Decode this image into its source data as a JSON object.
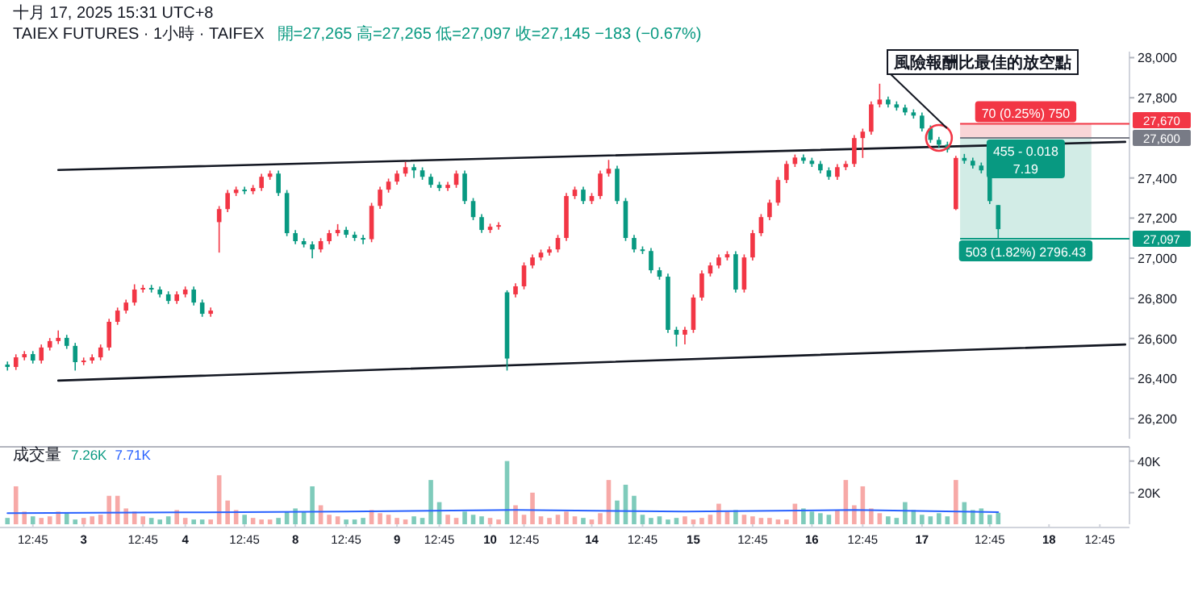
{
  "chart_data": [
    {
      "type": "candlestick",
      "title": "TAIEX FUTURES · 1小時 · TAIFEX",
      "subtitle": "開=27,265 高=27,265 低=27,097 收=27,145 −183 (−0.67%)",
      "annotations": [
        "十月 17, 2025 15:31 UTC+8",
        "風險報酬比最佳的放空點",
        {
          "text": "70 (0.25%) 750",
          "y": 27670
        },
        {
          "text": "455 - 0.018\n7.19",
          "y": 27600
        },
        {
          "text": "503 (1.82%) 2796.43",
          "y": 27097
        }
      ],
      "categories": [
        null,
        null,
        null,
        null,
        null,
        null,
        null,
        null,
        null,
        null,
        null,
        null,
        null,
        null,
        null,
        null,
        null,
        null,
        null,
        null,
        null,
        null,
        null,
        null,
        null,
        null,
        null,
        null,
        null,
        null,
        null,
        null,
        null,
        null,
        null,
        null,
        null,
        null,
        null,
        null,
        null,
        null,
        null,
        null,
        null,
        null,
        null,
        null,
        null,
        null,
        null,
        null,
        null,
        null,
        null,
        null,
        null,
        null,
        null,
        null,
        null,
        null,
        null,
        null,
        null,
        null,
        null,
        null,
        null,
        null,
        null,
        null,
        null,
        null,
        null,
        null,
        null,
        null,
        null,
        null,
        null,
        null,
        null,
        null,
        null,
        null,
        null,
        null,
        null,
        null,
        null,
        null,
        null,
        null,
        null,
        null,
        null,
        null,
        null,
        null,
        null,
        null,
        null,
        null,
        null,
        null,
        null,
        null,
        null,
        null,
        null,
        null,
        null,
        null,
        null,
        null,
        null,
        null,
        null,
        null,
        null,
        null,
        null,
        null,
        null,
        null,
        null,
        null,
        null,
        null,
        null,
        null,
        null
      ],
      "ohlc": [
        [
          26470,
          26485,
          26440,
          26458
        ],
        [
          26458,
          26521,
          26443,
          26506
        ],
        [
          26506,
          26537,
          26491,
          26522
        ],
        [
          26522,
          26537,
          26475,
          26490
        ],
        [
          26490,
          26570,
          26475,
          26555
        ],
        [
          26555,
          26602,
          26540,
          26587
        ],
        [
          26587,
          26640,
          26572,
          26603
        ],
        [
          26603,
          26618,
          26548,
          26563
        ],
        [
          26563,
          26578,
          26440,
          26482
        ],
        [
          26482,
          26505,
          26467,
          26490
        ],
        [
          26490,
          26521,
          26475,
          26506
        ],
        [
          26506,
          26570,
          26491,
          26555
        ],
        [
          26555,
          26698,
          26540,
          26683
        ],
        [
          26683,
          26754,
          26668,
          26739
        ],
        [
          26739,
          26794,
          26724,
          26779
        ],
        [
          26779,
          26870,
          26764,
          26844
        ],
        [
          26844,
          26867,
          26829,
          26852
        ],
        [
          26852,
          26867,
          26829,
          26844
        ],
        [
          26844,
          26859,
          26805,
          26820
        ],
        [
          26820,
          26835,
          26772,
          26787
        ],
        [
          26787,
          26835,
          26772,
          26820
        ],
        [
          26820,
          26859,
          26805,
          26844
        ],
        [
          26844,
          26859,
          26764,
          26779
        ],
        [
          26779,
          26794,
          26708,
          26723
        ],
        [
          26723,
          26754,
          26708,
          26739
        ],
        [
          27180,
          27260,
          27028,
          27245
        ],
        [
          27245,
          27340,
          27230,
          27325
        ],
        [
          27325,
          27357,
          27310,
          27342
        ],
        [
          27342,
          27357,
          27319,
          27334
        ],
        [
          27334,
          27365,
          27319,
          27350
        ],
        [
          27350,
          27421,
          27335,
          27406
        ],
        [
          27406,
          27437,
          27391,
          27422
        ],
        [
          27422,
          27437,
          27310,
          27325
        ],
        [
          27325,
          27340,
          27110,
          27125
        ],
        [
          27125,
          27140,
          27070,
          27085
        ],
        [
          27085,
          27100,
          27054,
          27069
        ],
        [
          27069,
          27084,
          27000,
          27044
        ],
        [
          27044,
          27100,
          27029,
          27085
        ],
        [
          27085,
          27140,
          27070,
          27125
        ],
        [
          27125,
          27170,
          27110,
          27141
        ],
        [
          27141,
          27156,
          27102,
          27117
        ],
        [
          27117,
          27132,
          27086,
          27101
        ],
        [
          27101,
          27116,
          27070,
          27095
        ],
        [
          27095,
          27276,
          27080,
          27261
        ],
        [
          27261,
          27357,
          27246,
          27342
        ],
        [
          27342,
          27397,
          27327,
          27382
        ],
        [
          27382,
          27437,
          27367,
          27422
        ],
        [
          27422,
          27480,
          27407,
          27454
        ],
        [
          27454,
          27469,
          27400,
          27438
        ],
        [
          27438,
          27453,
          27391,
          27406
        ],
        [
          27406,
          27421,
          27351,
          27366
        ],
        [
          27366,
          27381,
          27335,
          27350
        ],
        [
          27350,
          27381,
          27335,
          27366
        ],
        [
          27366,
          27437,
          27351,
          27422
        ],
        [
          27422,
          27437,
          27270,
          27285
        ],
        [
          27285,
          27300,
          27190,
          27205
        ],
        [
          27205,
          27220,
          27126,
          27141
        ],
        [
          27141,
          27172,
          27126,
          27157
        ],
        [
          27157,
          27180,
          27142,
          27165
        ],
        [
          26830,
          26840,
          26440,
          26500
        ],
        [
          26820,
          26875,
          26805,
          26860
        ],
        [
          26860,
          26979,
          26845,
          26964
        ],
        [
          26964,
          27019,
          26949,
          27004
        ],
        [
          27004,
          27043,
          26989,
          27028
        ],
        [
          27028,
          27059,
          27013,
          27044
        ],
        [
          27044,
          27116,
          27029,
          27101
        ],
        [
          27101,
          27325,
          27086,
          27310
        ],
        [
          27310,
          27357,
          27295,
          27342
        ],
        [
          27342,
          27357,
          27270,
          27285
        ],
        [
          27285,
          27325,
          27270,
          27310
        ],
        [
          27310,
          27437,
          27295,
          27422
        ],
        [
          27422,
          27490,
          27407,
          27446
        ],
        [
          27446,
          27461,
          27270,
          27285
        ],
        [
          27285,
          27300,
          27086,
          27101
        ],
        [
          27101,
          27116,
          27029,
          27044
        ],
        [
          27044,
          27059,
          27021,
          27036
        ],
        [
          27036,
          27051,
          26925,
          26940
        ],
        [
          26940,
          26955,
          26893,
          26908
        ],
        [
          26908,
          26923,
          26628,
          26643
        ],
        [
          26643,
          26658,
          26560,
          26619
        ],
        [
          26619,
          26658,
          26570,
          26643
        ],
        [
          26643,
          26819,
          26628,
          26804
        ],
        [
          26804,
          26939,
          26789,
          26924
        ],
        [
          26924,
          26979,
          26909,
          26964
        ],
        [
          26964,
          27019,
          26949,
          27004
        ],
        [
          27004,
          27035,
          26989,
          27020
        ],
        [
          27020,
          27035,
          26829,
          26844
        ],
        [
          26844,
          27019,
          26829,
          27004
        ],
        [
          27004,
          27140,
          26989,
          27125
        ],
        [
          27125,
          27220,
          27110,
          27205
        ],
        [
          27205,
          27292,
          27190,
          27277
        ],
        [
          27277,
          27405,
          27262,
          27390
        ],
        [
          27390,
          27485,
          27375,
          27470
        ],
        [
          27470,
          27517,
          27455,
          27502
        ],
        [
          27502,
          27517,
          27471,
          27486
        ],
        [
          27486,
          27501,
          27455,
          27470
        ],
        [
          27470,
          27485,
          27423,
          27438
        ],
        [
          27438,
          27453,
          27391,
          27406
        ],
        [
          27406,
          27469,
          27391,
          27454
        ],
        [
          27454,
          27485,
          27439,
          27470
        ],
        [
          27470,
          27614,
          27455,
          27599
        ],
        [
          27599,
          27646,
          27500,
          27631
        ],
        [
          27631,
          27782,
          27616,
          27767
        ],
        [
          27767,
          27870,
          27752,
          27791
        ],
        [
          27791,
          27806,
          27752,
          27767
        ],
        [
          27767,
          27782,
          27736,
          27751
        ],
        [
          27751,
          27766,
          27712,
          27727
        ],
        [
          27727,
          27742,
          27696,
          27711
        ],
        [
          27711,
          27726,
          27632,
          27647
        ],
        [
          27647,
          27662,
          27575,
          27590
        ],
        [
          27590,
          27605,
          27551,
          27566
        ],
        [
          27566,
          27581,
          27527,
          27542
        ],
        [
          27245,
          27510,
          27240,
          27500
        ],
        [
          27500,
          27520,
          27471,
          27486
        ],
        [
          27486,
          27501,
          27447,
          27462
        ],
        [
          27462,
          27477,
          27423,
          27438
        ],
        [
          27438,
          27453,
          27270,
          27285
        ],
        [
          27265,
          27265,
          27097,
          27145
        ],
        null,
        null,
        null,
        null,
        null,
        null,
        null,
        null,
        null,
        null,
        null,
        null,
        null,
        null,
        null
      ],
      "colors": [
        "#089981",
        "#f23645",
        "#f23645",
        "#089981",
        "#f23645",
        "#f23645",
        "#f23645",
        "#089981",
        "#089981",
        "#f23645",
        "#f23645",
        "#f23645",
        "#f23645",
        "#f23645",
        "#f23645",
        "#f23645",
        "#f23645",
        "#089981",
        "#089981",
        "#089981",
        "#f23645",
        "#f23645",
        "#089981",
        "#089981",
        "#f23645",
        "#f23645",
        "#f23645",
        "#f23645",
        "#089981",
        "#f23645",
        "#f23645",
        "#f23645",
        "#089981",
        "#089981",
        "#089981",
        "#089981",
        "#089981",
        "#f23645",
        "#f23645",
        "#f23645",
        "#089981",
        "#089981",
        "#089981",
        "#f23645",
        "#f23645",
        "#f23645",
        "#f23645",
        "#f23645",
        "#089981",
        "#089981",
        "#089981",
        "#089981",
        "#f23645",
        "#f23645",
        "#089981",
        "#089981",
        "#089981",
        "#f23645",
        "#f23645",
        "#089981",
        "#f23645",
        "#f23645",
        "#f23645",
        "#f23645",
        "#f23645",
        "#f23645",
        "#f23645",
        "#f23645",
        "#089981",
        "#f23645",
        "#f23645",
        "#f23645",
        "#089981",
        "#089981",
        "#089981",
        "#089981",
        "#089981",
        "#089981",
        "#089981",
        "#089981",
        "#f23645",
        "#f23645",
        "#f23645",
        "#f23645",
        "#f23645",
        "#f23645",
        "#089981",
        "#f23645",
        "#f23645",
        "#f23645",
        "#f23645",
        "#f23645",
        "#f23645",
        "#f23645",
        "#089981",
        "#089981",
        "#089981",
        "#089981",
        "#f23645",
        "#f23645",
        "#f23645",
        "#f23645",
        "#f23645",
        "#f23645",
        "#089981",
        "#089981",
        "#089981",
        "#089981",
        "#089981",
        "#089981",
        "#089981",
        "#089981",
        "#f23645",
        "#089981",
        "#089981",
        "#089981",
        "#089981",
        "#089981",
        null,
        null,
        null,
        null,
        null,
        null,
        null,
        null,
        null,
        null,
        null,
        null,
        null,
        null,
        null
      ],
      "series": [
        {
          "type": "line",
          "color": "#131722",
          "values": [
            null,
            null,
            null,
            null,
            null,
            null,
            27440,
            null,
            null,
            null,
            null,
            null,
            null,
            null,
            null,
            null,
            null,
            null,
            null,
            null,
            null,
            null,
            null,
            null,
            null,
            null,
            null,
            null,
            null,
            null,
            null,
            null,
            null,
            null,
            null,
            null,
            null,
            null,
            null,
            null,
            null,
            null,
            null,
            null,
            null,
            null,
            null,
            null,
            null,
            null,
            null,
            null,
            null,
            null,
            null,
            null,
            null,
            null,
            null,
            null,
            null,
            null,
            null,
            null,
            null,
            null,
            null,
            null,
            null,
            null,
            null,
            null,
            null,
            null,
            null,
            null,
            null,
            null,
            null,
            null,
            null,
            null,
            null,
            null,
            null,
            null,
            null,
            null,
            null,
            null,
            null,
            null,
            null,
            null,
            null,
            null,
            null,
            null,
            null,
            null,
            null,
            null,
            null,
            null,
            null,
            null,
            null,
            null,
            null,
            null,
            null,
            null,
            null,
            null,
            null,
            null,
            null,
            null,
            null,
            null,
            null,
            null,
            null,
            null,
            null,
            null,
            null,
            null,
            null,
            null,
            null,
            null,
            27580
          ]
        },
        {
          "type": "line",
          "color": "#131722",
          "values": [
            null,
            null,
            null,
            null,
            null,
            null,
            26390,
            null,
            null,
            null,
            null,
            null,
            null,
            null,
            null,
            null,
            null,
            null,
            null,
            null,
            null,
            null,
            null,
            null,
            null,
            null,
            null,
            null,
            null,
            null,
            null,
            null,
            null,
            null,
            null,
            null,
            null,
            null,
            null,
            null,
            null,
            null,
            null,
            null,
            null,
            null,
            null,
            null,
            null,
            null,
            null,
            null,
            null,
            null,
            null,
            null,
            null,
            null,
            null,
            null,
            null,
            null,
            null,
            null,
            null,
            null,
            null,
            null,
            null,
            null,
            null,
            null,
            null,
            null,
            null,
            null,
            null,
            null,
            null,
            null,
            null,
            null,
            null,
            null,
            null,
            null,
            null,
            null,
            null,
            null,
            null,
            null,
            null,
            null,
            null,
            null,
            null,
            null,
            null,
            null,
            null,
            null,
            null,
            null,
            null,
            null,
            null,
            null,
            null,
            null,
            null,
            null,
            null,
            null,
            null,
            null,
            null,
            null,
            null,
            null,
            null,
            null,
            null,
            null,
            null,
            null,
            null,
            null,
            null,
            null,
            null,
            null,
            26570
          ]
        }
      ],
      "bands": [
        {
          "axis": "y",
          "from": 27600,
          "to": 27670,
          "color": "#f9d5d7"
        },
        {
          "axis": "y",
          "from": 27097,
          "to": 27600,
          "color": "#d2ece6"
        }
      ],
      "ref_lines": [
        {
          "axis": "y",
          "value": 27670,
          "label": "27,670",
          "color": "#f23645"
        },
        {
          "axis": "y",
          "value": 27600,
          "label": "27,600",
          "color": "#787b86"
        },
        {
          "axis": "y",
          "value": 27097,
          "label": "27,097",
          "color": "#089981"
        }
      ],
      "ylim": [
        26100,
        28030
      ],
      "yticks": [
        {
          "value": 26200,
          "label": "26,200"
        },
        {
          "value": 26400,
          "label": "26,400"
        },
        {
          "value": 26600,
          "label": "26,600"
        },
        {
          "value": 26800,
          "label": "26,800"
        },
        {
          "value": 27000,
          "label": "27,000"
        },
        {
          "value": 27200,
          "label": "27,200"
        },
        {
          "value": 27400,
          "label": "27,400"
        },
        {
          "value": 27800,
          "label": "27,800"
        },
        {
          "value": 28000,
          "label": "28,000"
        }
      ],
      "tick_labels": "y"
    },
    {
      "type": "bar",
      "title": "成交量",
      "legend": "top left",
      "categories": [
        null,
        null,
        null,
        "12:45",
        null,
        null,
        null,
        null,
        null,
        "3",
        null,
        null,
        null,
        null,
        null,
        null,
        "12:45",
        null,
        null,
        null,
        null,
        "4",
        null,
        null,
        null,
        null,
        null,
        null,
        "12:45",
        null,
        null,
        null,
        null,
        null,
        "8",
        null,
        null,
        null,
        null,
        null,
        "12:45",
        null,
        null,
        null,
        null,
        null,
        "9",
        null,
        null,
        null,
        null,
        "12:45",
        null,
        null,
        null,
        null,
        null,
        "10",
        null,
        null,
        null,
        "12:45",
        null,
        null,
        null,
        null,
        null,
        null,
        null,
        "14",
        null,
        null,
        null,
        null,
        null,
        "12:45",
        null,
        null,
        null,
        null,
        null,
        "15",
        null,
        null,
        null,
        null,
        null,
        null,
        "12:45",
        null,
        null,
        null,
        null,
        null,
        null,
        "16",
        null,
        null,
        null,
        null,
        null,
        "12:45",
        null,
        null,
        null,
        null,
        null,
        null,
        "17",
        null,
        null,
        null,
        null,
        null,
        null,
        null,
        "12:45",
        null,
        null,
        null,
        null,
        null,
        null,
        "18",
        null,
        null,
        null,
        null,
        null,
        "12:45",
        null,
        null,
        null
      ],
      "series": [
        {
          "name": "7.26K",
          "type": "bar",
          "color": "#089981",
          "values": [
            4000,
            24000,
            8000,
            5000,
            4000,
            5000,
            8000,
            7000,
            3000,
            4000,
            5000,
            6000,
            18000,
            18000,
            10000,
            8000,
            5000,
            4000,
            3000,
            5000,
            9000,
            4000,
            3000,
            3000,
            3000,
            31000,
            15000,
            9000,
            6000,
            4000,
            3000,
            3000,
            4000,
            8000,
            10000,
            8000,
            24000,
            12000,
            6000,
            5000,
            3000,
            3000,
            4000,
            9000,
            7000,
            6000,
            4000,
            3000,
            5000,
            4000,
            28000,
            14000,
            6000,
            4000,
            8000,
            6000,
            5000,
            4000,
            3000,
            40000,
            12000,
            6000,
            20000,
            5000,
            4000,
            6000,
            8000,
            5000,
            4000,
            3000,
            7000,
            28000,
            15000,
            25000,
            18000,
            6000,
            4000,
            5000,
            3000,
            4000,
            5000,
            3000,
            4000,
            6000,
            13000,
            8000,
            9000,
            6000,
            5000,
            4000,
            4000,
            3000,
            3000,
            13000,
            10000,
            8000,
            7000,
            6000,
            9000,
            28000,
            12000,
            24000,
            10000,
            7000,
            5000,
            4000,
            14000,
            9000,
            6000,
            5000,
            7000,
            5000,
            28000,
            14000,
            9000,
            10000,
            6000,
            7260,
            null,
            null,
            null,
            null,
            null,
            null,
            null,
            null,
            null,
            null,
            null,
            null,
            null,
            null,
            null
          ],
          "colors": [
            "#7fcbbb",
            "#f7a9a7",
            "#f7a9a7",
            "#7fcbbb",
            "#f7a9a7",
            "#f7a9a7",
            "#f7a9a7",
            "#7fcbbb",
            "#7fcbbb",
            "#f7a9a7",
            "#f7a9a7",
            "#f7a9a7",
            "#f7a9a7",
            "#f7a9a7",
            "#f7a9a7",
            "#f7a9a7",
            "#f7a9a7",
            "#7fcbbb",
            "#7fcbbb",
            "#7fcbbb",
            "#f7a9a7",
            "#f7a9a7",
            "#7fcbbb",
            "#7fcbbb",
            "#f7a9a7",
            "#f7a9a7",
            "#f7a9a7",
            "#f7a9a7",
            "#7fcbbb",
            "#f7a9a7",
            "#f7a9a7",
            "#f7a9a7",
            "#7fcbbb",
            "#7fcbbb",
            "#7fcbbb",
            "#7fcbbb",
            "#7fcbbb",
            "#f7a9a7",
            "#f7a9a7",
            "#f7a9a7",
            "#7fcbbb",
            "#7fcbbb",
            "#7fcbbb",
            "#f7a9a7",
            "#f7a9a7",
            "#f7a9a7",
            "#f7a9a7",
            "#f7a9a7",
            "#7fcbbb",
            "#7fcbbb",
            "#7fcbbb",
            "#7fcbbb",
            "#f7a9a7",
            "#f7a9a7",
            "#7fcbbb",
            "#7fcbbb",
            "#7fcbbb",
            "#f7a9a7",
            "#f7a9a7",
            "#7fcbbb",
            "#f7a9a7",
            "#f7a9a7",
            "#f7a9a7",
            "#f7a9a7",
            "#f7a9a7",
            "#f7a9a7",
            "#f7a9a7",
            "#f7a9a7",
            "#7fcbbb",
            "#f7a9a7",
            "#f7a9a7",
            "#f7a9a7",
            "#7fcbbb",
            "#7fcbbb",
            "#7fcbbb",
            "#7fcbbb",
            "#7fcbbb",
            "#7fcbbb",
            "#7fcbbb",
            "#7fcbbb",
            "#f7a9a7",
            "#f7a9a7",
            "#f7a9a7",
            "#f7a9a7",
            "#f7a9a7",
            "#f7a9a7",
            "#7fcbbb",
            "#f7a9a7",
            "#f7a9a7",
            "#f7a9a7",
            "#f7a9a7",
            "#f7a9a7",
            "#f7a9a7",
            "#f7a9a7",
            "#7fcbbb",
            "#7fcbbb",
            "#7fcbbb",
            "#7fcbbb",
            "#f7a9a7",
            "#f7a9a7",
            "#f7a9a7",
            "#f7a9a7",
            "#f7a9a7",
            "#f7a9a7",
            "#7fcbbb",
            "#7fcbbb",
            "#7fcbbb",
            "#7fcbbb",
            "#7fcbbb",
            "#7fcbbb",
            "#7fcbbb",
            "#7fcbbb",
            "#f7a9a7",
            "#7fcbbb",
            "#7fcbbb",
            "#7fcbbb",
            "#7fcbbb",
            "#7fcbbb",
            null,
            null,
            null,
            null,
            null,
            null,
            null,
            null,
            null,
            null,
            null,
            null,
            null,
            null,
            null
          ]
        },
        {
          "name": "7.71K",
          "type": "line",
          "color": "#2962ff",
          "values": [
            7000,
            null,
            null,
            null,
            null,
            null,
            null,
            null,
            null,
            null,
            null,
            null,
            null,
            null,
            null,
            null,
            null,
            null,
            null,
            null,
            7500,
            null,
            null,
            null,
            null,
            null,
            null,
            null,
            null,
            null,
            null,
            null,
            null,
            null,
            null,
            null,
            null,
            null,
            null,
            null,
            8000,
            null,
            null,
            null,
            null,
            null,
            null,
            null,
            null,
            null,
            null,
            null,
            null,
            null,
            null,
            null,
            null,
            null,
            null,
            null,
            9000,
            null,
            null,
            null,
            null,
            null,
            null,
            null,
            null,
            null,
            null,
            null,
            null,
            null,
            null,
            null,
            null,
            null,
            null,
            null,
            8000,
            null,
            null,
            null,
            null,
            null,
            null,
            null,
            null,
            null,
            null,
            null,
            null,
            null,
            null,
            null,
            null,
            null,
            null,
            null,
            9000,
            null,
            null,
            null,
            null,
            null,
            null,
            null,
            null,
            null,
            null,
            null,
            null,
            null,
            null,
            null,
            null,
            7700,
            null,
            null,
            null,
            null,
            null,
            null,
            null,
            null,
            null,
            null,
            null,
            null,
            null,
            null,
            null
          ]
        }
      ],
      "ylim": [
        0,
        49000
      ],
      "yticks": [
        {
          "value": 20000,
          "label": "20K"
        },
        {
          "value": 40000,
          "label": "40K"
        }
      ]
    }
  ]
}
